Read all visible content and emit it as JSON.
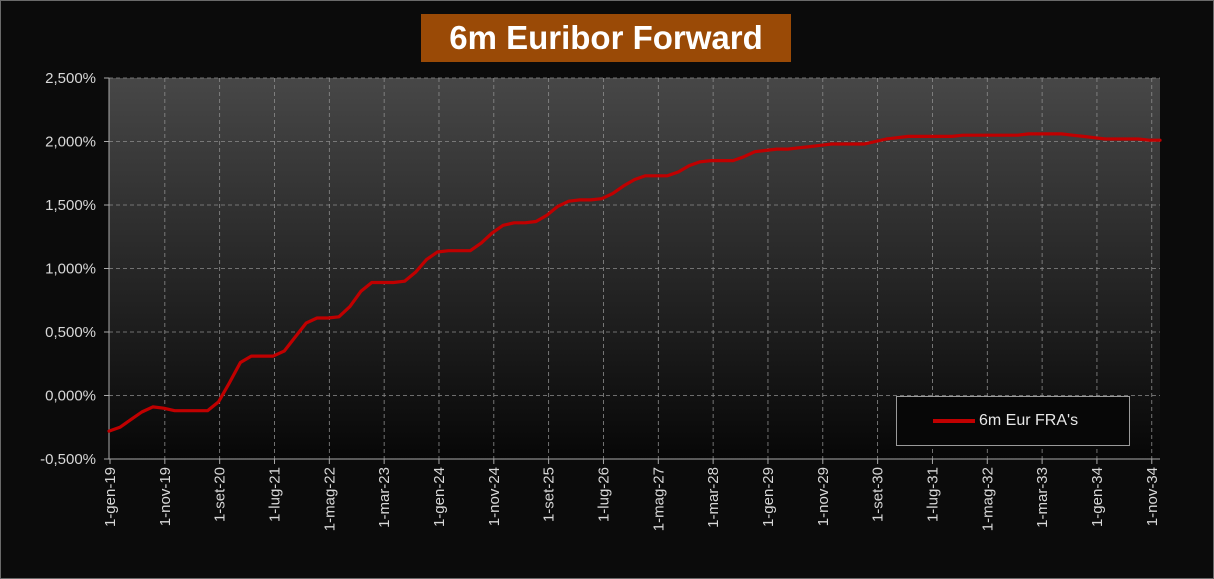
{
  "chart_data": {
    "type": "line",
    "title": "6m Euribor Forward",
    "xlabel": "",
    "ylabel": "",
    "ylim": [
      -0.5,
      2.5
    ],
    "y_ticks": [
      -0.5,
      0.0,
      0.5,
      1.0,
      1.5,
      2.0,
      2.5
    ],
    "y_tick_labels": [
      "-0,500%",
      "0,000%",
      "0,500%",
      "1,000%",
      "1,500%",
      "2,000%",
      "2,500%"
    ],
    "x_tick_labels": [
      "1-gen-19",
      "1-nov-19",
      "1-set-20",
      "1-lug-21",
      "1-mag-22",
      "1-mar-23",
      "1-gen-24",
      "1-nov-24",
      "1-set-25",
      "1-lug-26",
      "1-mag-27",
      "1-mar-28",
      "1-gen-29",
      "1-nov-29",
      "1-set-30",
      "1-lug-31",
      "1-mag-32",
      "1-mar-33",
      "1-gen-34",
      "1-nov-34"
    ],
    "grid": true,
    "legend_position": "bottom-right",
    "series": [
      {
        "name": "6m Eur FRA's",
        "color": "#c00000",
        "x": [
          "2019-01",
          "2019-03",
          "2019-05",
          "2019-07",
          "2019-09",
          "2019-11",
          "2020-01",
          "2020-03",
          "2020-05",
          "2020-07",
          "2020-09",
          "2020-11",
          "2021-01",
          "2021-03",
          "2021-05",
          "2021-07",
          "2021-09",
          "2021-11",
          "2022-01",
          "2022-03",
          "2022-05",
          "2022-07",
          "2022-09",
          "2022-11",
          "2023-01",
          "2023-03",
          "2023-05",
          "2023-07",
          "2023-09",
          "2023-11",
          "2024-01",
          "2024-03",
          "2024-05",
          "2024-07",
          "2024-09",
          "2024-11",
          "2025-01",
          "2025-03",
          "2025-05",
          "2025-07",
          "2025-09",
          "2025-11",
          "2026-01",
          "2026-03",
          "2026-05",
          "2026-07",
          "2026-09",
          "2026-11",
          "2027-01",
          "2027-03",
          "2027-05",
          "2027-07",
          "2027-09",
          "2027-11",
          "2028-01",
          "2028-03",
          "2028-05",
          "2028-07",
          "2028-09",
          "2028-11",
          "2029-01",
          "2029-03",
          "2029-05",
          "2029-07",
          "2029-09",
          "2029-11",
          "2030-01",
          "2030-03",
          "2030-05",
          "2030-07",
          "2030-09",
          "2030-11",
          "2031-01",
          "2031-03",
          "2031-05",
          "2031-07",
          "2031-09",
          "2031-11",
          "2032-01",
          "2032-03",
          "2032-05",
          "2032-07",
          "2032-09",
          "2032-11",
          "2033-01",
          "2033-03",
          "2033-05",
          "2033-07",
          "2033-09",
          "2033-11",
          "2034-01",
          "2034-03",
          "2034-05",
          "2034-07",
          "2034-09",
          "2034-11",
          "2035-01"
        ],
        "values": [
          -0.28,
          -0.25,
          -0.19,
          -0.13,
          -0.09,
          -0.1,
          -0.12,
          -0.12,
          -0.12,
          -0.12,
          -0.05,
          0.1,
          0.26,
          0.31,
          0.31,
          0.31,
          0.35,
          0.46,
          0.57,
          0.61,
          0.61,
          0.62,
          0.7,
          0.82,
          0.89,
          0.89,
          0.89,
          0.9,
          0.97,
          1.07,
          1.13,
          1.14,
          1.14,
          1.14,
          1.2,
          1.28,
          1.34,
          1.36,
          1.36,
          1.37,
          1.42,
          1.49,
          1.53,
          1.54,
          1.54,
          1.55,
          1.59,
          1.65,
          1.7,
          1.73,
          1.73,
          1.73,
          1.76,
          1.81,
          1.84,
          1.85,
          1.85,
          1.85,
          1.88,
          1.92,
          1.93,
          1.94,
          1.94,
          1.95,
          1.96,
          1.97,
          1.98,
          1.98,
          1.98,
          1.98,
          2.0,
          2.02,
          2.03,
          2.04,
          2.04,
          2.04,
          2.04,
          2.04,
          2.05,
          2.05,
          2.05,
          2.05,
          2.05,
          2.05,
          2.06,
          2.06,
          2.06,
          2.06,
          2.05,
          2.04,
          2.03,
          2.02,
          2.02,
          2.02,
          2.02,
          2.01,
          2.01
        ]
      }
    ]
  }
}
